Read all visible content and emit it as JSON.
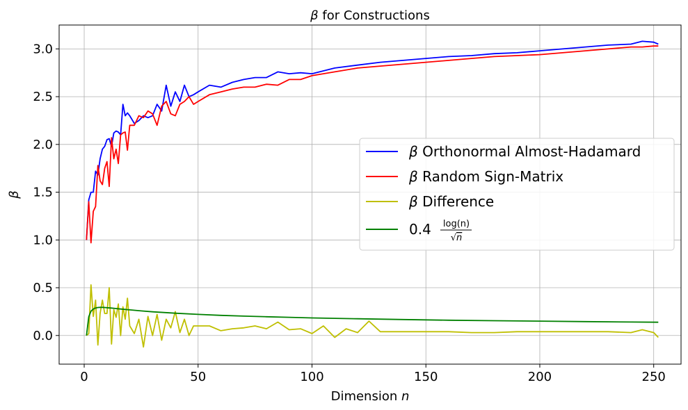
{
  "chart_data": {
    "type": "line",
    "title": "β for Constructions",
    "xlabel": "Dimension n",
    "ylabel": "β",
    "xlim": [
      -11,
      262
    ],
    "ylim": [
      -0.3,
      3.25
    ],
    "xticks": [
      0,
      50,
      100,
      150,
      200,
      250
    ],
    "yticks": [
      0.0,
      0.5,
      1.0,
      1.5,
      2.0,
      2.5,
      3.0
    ],
    "ytick_labels": [
      "0.0",
      "0.5",
      "1.0",
      "1.5",
      "2.0",
      "2.5",
      "3.0"
    ],
    "grid": true,
    "legend_position": "center-right",
    "legend_formula": {
      "coefficient": "0.4",
      "numerator": "log(n)",
      "denominator": "n",
      "sqrt_symbol": "√"
    },
    "series": [
      {
        "name": "β Orthonormal Almost-Hadamard",
        "color": "#0000ff",
        "x": [
          1,
          2,
          3,
          4,
          5,
          6,
          7,
          8,
          9,
          10,
          11,
          12,
          13,
          14,
          15,
          16,
          17,
          18,
          19,
          20,
          22,
          24,
          26,
          28,
          30,
          32,
          34,
          36,
          38,
          40,
          42,
          44,
          46,
          48,
          50,
          55,
          60,
          65,
          70,
          75,
          80,
          85,
          90,
          95,
          100,
          110,
          120,
          130,
          140,
          150,
          160,
          170,
          180,
          190,
          200,
          210,
          220,
          230,
          240,
          245,
          250,
          252
        ],
        "values": [
          1.0,
          1.42,
          1.5,
          1.5,
          1.72,
          1.68,
          1.85,
          1.95,
          1.98,
          2.05,
          2.06,
          1.98,
          2.12,
          2.14,
          2.13,
          2.1,
          2.42,
          2.3,
          2.33,
          2.3,
          2.22,
          2.25,
          2.3,
          2.28,
          2.3,
          2.42,
          2.35,
          2.62,
          2.4,
          2.55,
          2.45,
          2.62,
          2.5,
          2.52,
          2.55,
          2.62,
          2.6,
          2.65,
          2.68,
          2.7,
          2.7,
          2.76,
          2.74,
          2.75,
          2.74,
          2.8,
          2.83,
          2.86,
          2.88,
          2.9,
          2.92,
          2.93,
          2.95,
          2.96,
          2.98,
          3.0,
          3.02,
          3.04,
          3.05,
          3.08,
          3.07,
          3.05
        ]
      },
      {
        "name": "β Random Sign-Matrix",
        "color": "#ff0000",
        "x": [
          1,
          2,
          3,
          4,
          5,
          6,
          7,
          8,
          9,
          10,
          11,
          12,
          13,
          14,
          15,
          16,
          17,
          18,
          19,
          20,
          22,
          24,
          26,
          28,
          30,
          32,
          34,
          36,
          38,
          40,
          42,
          44,
          46,
          48,
          50,
          55,
          60,
          65,
          70,
          75,
          80,
          85,
          90,
          95,
          100,
          110,
          120,
          130,
          140,
          150,
          160,
          170,
          180,
          190,
          200,
          210,
          220,
          230,
          240,
          245,
          250,
          252
        ],
        "values": [
          1.0,
          1.4,
          0.97,
          1.3,
          1.35,
          1.78,
          1.62,
          1.58,
          1.75,
          1.82,
          1.56,
          2.07,
          1.85,
          1.95,
          1.8,
          2.1,
          2.12,
          2.13,
          1.94,
          2.2,
          2.2,
          2.3,
          2.28,
          2.35,
          2.32,
          2.2,
          2.4,
          2.45,
          2.32,
          2.3,
          2.42,
          2.45,
          2.5,
          2.42,
          2.45,
          2.52,
          2.55,
          2.58,
          2.6,
          2.6,
          2.63,
          2.62,
          2.68,
          2.68,
          2.72,
          2.76,
          2.8,
          2.82,
          2.84,
          2.86,
          2.88,
          2.9,
          2.92,
          2.93,
          2.94,
          2.96,
          2.98,
          3.0,
          3.02,
          3.02,
          3.03,
          3.03
        ]
      },
      {
        "name": "β Difference",
        "color": "#bfbf00",
        "x": [
          1,
          2,
          3,
          4,
          5,
          6,
          7,
          8,
          9,
          10,
          11,
          12,
          13,
          14,
          15,
          16,
          17,
          18,
          19,
          20,
          22,
          24,
          26,
          28,
          30,
          32,
          34,
          36,
          38,
          40,
          42,
          44,
          46,
          48,
          50,
          55,
          60,
          65,
          70,
          75,
          80,
          85,
          90,
          95,
          100,
          105,
          110,
          115,
          120,
          125,
          130,
          140,
          150,
          160,
          170,
          180,
          190,
          200,
          210,
          220,
          230,
          240,
          245,
          250,
          252
        ],
        "values": [
          0.0,
          0.02,
          0.53,
          0.2,
          0.37,
          -0.1,
          0.23,
          0.37,
          0.23,
          0.23,
          0.5,
          -0.09,
          0.27,
          0.19,
          0.33,
          0.0,
          0.3,
          0.17,
          0.39,
          0.1,
          0.02,
          0.17,
          -0.12,
          0.2,
          0.0,
          0.22,
          -0.05,
          0.17,
          0.08,
          0.25,
          0.03,
          0.17,
          0.0,
          0.1,
          0.1,
          0.1,
          0.05,
          0.07,
          0.08,
          0.1,
          0.07,
          0.14,
          0.06,
          0.07,
          0.02,
          0.1,
          -0.02,
          0.07,
          0.03,
          0.15,
          0.04,
          0.04,
          0.04,
          0.04,
          0.03,
          0.03,
          0.04,
          0.04,
          0.04,
          0.04,
          0.04,
          0.03,
          0.06,
          0.03,
          -0.02
        ]
      },
      {
        "name": "0.4 log(n)/√n",
        "color": "#008000",
        "x": [
          1,
          2,
          3,
          4,
          5,
          6,
          7,
          8,
          9,
          10,
          12,
          14,
          16,
          20,
          25,
          30,
          40,
          50,
          60,
          70,
          80,
          90,
          100,
          120,
          140,
          160,
          180,
          200,
          220,
          240,
          252
        ],
        "values": [
          0.0,
          0.196,
          0.254,
          0.277,
          0.288,
          0.293,
          0.294,
          0.294,
          0.293,
          0.291,
          0.287,
          0.282,
          0.277,
          0.268,
          0.257,
          0.248,
          0.233,
          0.221,
          0.211,
          0.203,
          0.196,
          0.19,
          0.184,
          0.175,
          0.167,
          0.16,
          0.155,
          0.15,
          0.145,
          0.141,
          0.139
        ]
      }
    ]
  }
}
